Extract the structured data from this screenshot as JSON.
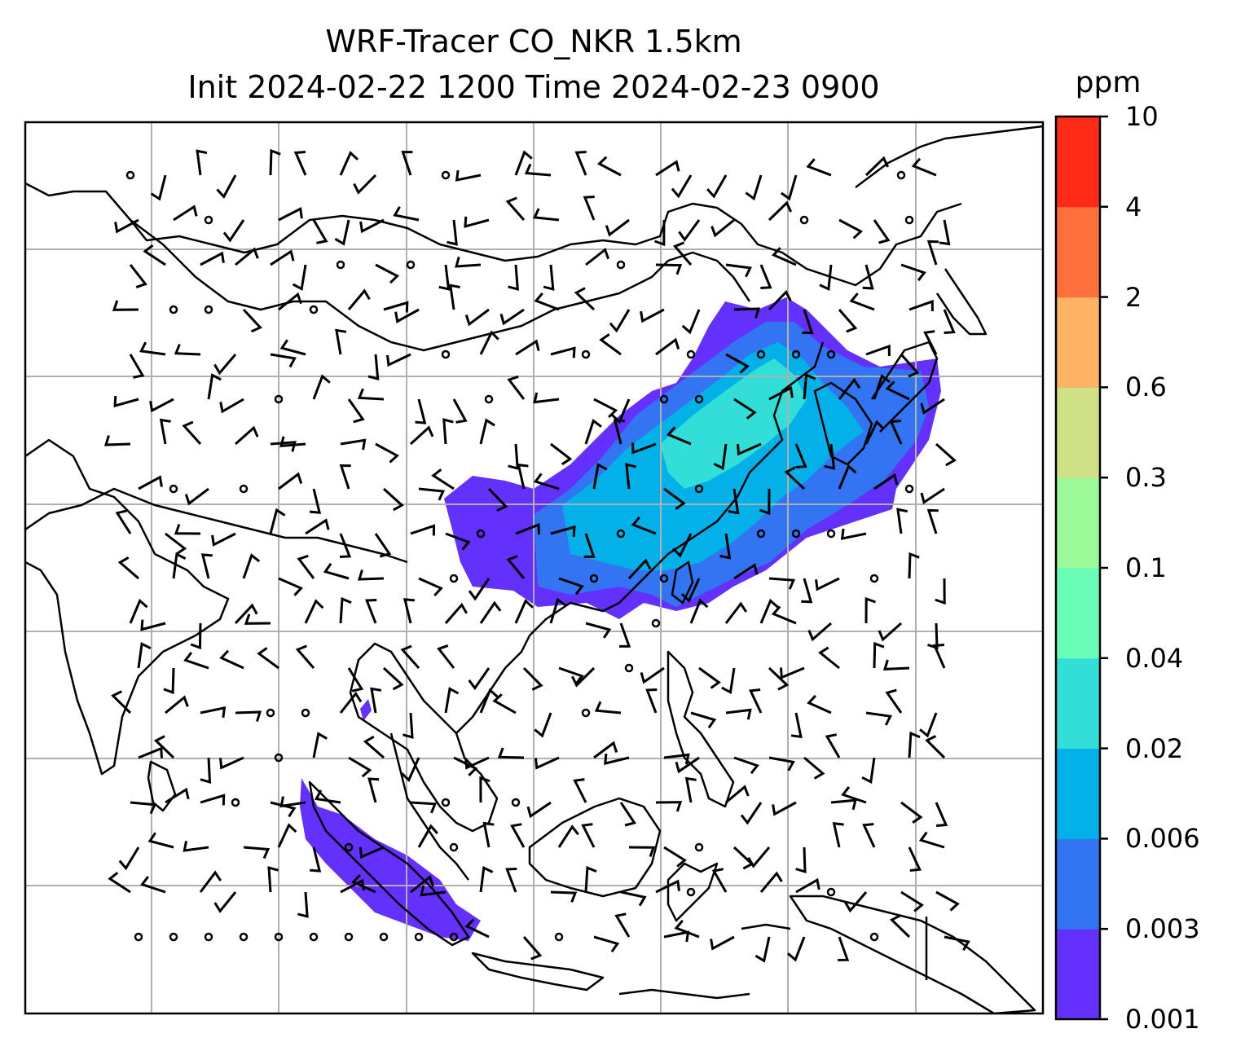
{
  "title": {
    "line1": "WRF-Tracer CO_NKR 1.5km",
    "line2": "Init 2024-02-22 1200 Time 2024-02-23 0900"
  },
  "colorbar": {
    "unit": "ppm",
    "levels": [
      "0.001",
      "0.003",
      "0.006",
      "0.02",
      "0.04",
      "0.1",
      "0.3",
      "0.6",
      "2",
      "4",
      "10"
    ],
    "colors": [
      "#6430fc",
      "#3374f2",
      "#04b0e8",
      "#32dfd8",
      "#69fdb8",
      "#9cf997",
      "#cfe086",
      "#feb264",
      "#fd703b",
      "#ff2a18"
    ]
  },
  "map": {
    "gridlines": true,
    "coastline_color": "#000000",
    "wind_barbs": true
  }
}
